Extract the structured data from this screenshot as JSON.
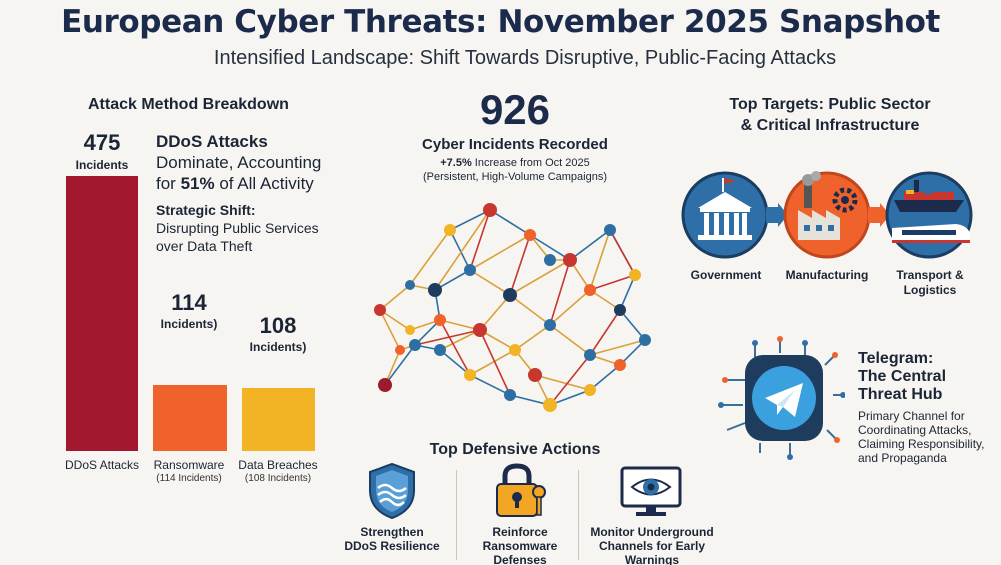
{
  "title": "European Cyber Threats: November 2025 Snapshot",
  "subtitle": "Intensified Landscape: Shift Towards Disruptive, Public-Facing Attacks",
  "attack_breakdown": {
    "heading": "Attack Method Breakdown",
    "ddos_headline": "DDoS Attacks",
    "ddos_line2": "Dominate, Accounting",
    "ddos_line3_pre": "for ",
    "ddos_line3_pct": "51%",
    "ddos_line3_post": " of All Activity",
    "shift_heading": "Strategic Shift:",
    "shift_line1": "Disrupting Public Services",
    "shift_line2": "over Data Theft"
  },
  "chart_data": {
    "type": "bar",
    "categories": [
      "DDoS Attacks",
      "Ransomware",
      "Data Breaches"
    ],
    "values": [
      475,
      114,
      108
    ],
    "value_labels": [
      "475",
      "114",
      "108"
    ],
    "unit_labels": [
      "Incidents",
      "Incidents)",
      "Incidents)"
    ],
    "sublabels": [
      "",
      "(114 Incidents)",
      "(108 Incidents)"
    ],
    "colors": [
      "#a3182e",
      "#f0622b",
      "#f2b324"
    ]
  },
  "incidents": {
    "count": "926",
    "label": "Cyber Incidents Recorded",
    "change_bold": "+7.5%",
    "change_rest": " Increase from Oct 2025",
    "note": "(Persistent, High-Volume Campaigns)"
  },
  "targets": {
    "heading_line1": "Top Targets: Public Sector",
    "heading_line2": "& Critical Infrastructure",
    "items": [
      {
        "label": "Government",
        "icon": "government-building-icon"
      },
      {
        "label": "Manufacturing",
        "icon": "factory-icon"
      },
      {
        "label": "Transport &",
        "label2": "Logistics",
        "icon": "ship-train-icon"
      }
    ]
  },
  "telegram": {
    "heading_line1": "Telegram:",
    "heading_line2": "The Central",
    "heading_line3": "Threat Hub",
    "desc_line1": "Primary Channel for",
    "desc_line2": "Coordinating Attacks,",
    "desc_line3": "Claiming Responsibility,",
    "desc_line4": "and Propaganda",
    "icon": "telegram-icon"
  },
  "defense": {
    "heading": "Top Defensive Actions",
    "items": [
      {
        "line1": "Strengthen",
        "line2": "DDoS Resilience",
        "line3": "",
        "icon": "shield-icon"
      },
      {
        "line1": "Reinforce",
        "line2": "Ransomware",
        "line3": "Defenses",
        "icon": "lock-key-icon"
      },
      {
        "line1": "Monitor Underground",
        "line2": "Channels for Early",
        "line3": "Warnings",
        "icon": "monitor-eye-icon"
      }
    ]
  },
  "colors": {
    "navy": "#1c2b4b",
    "ddos": "#a3182e",
    "ransomware": "#f0622b",
    "breaches": "#f2b324",
    "blue": "#2f6fa8",
    "telegram": "#3aa0de"
  }
}
